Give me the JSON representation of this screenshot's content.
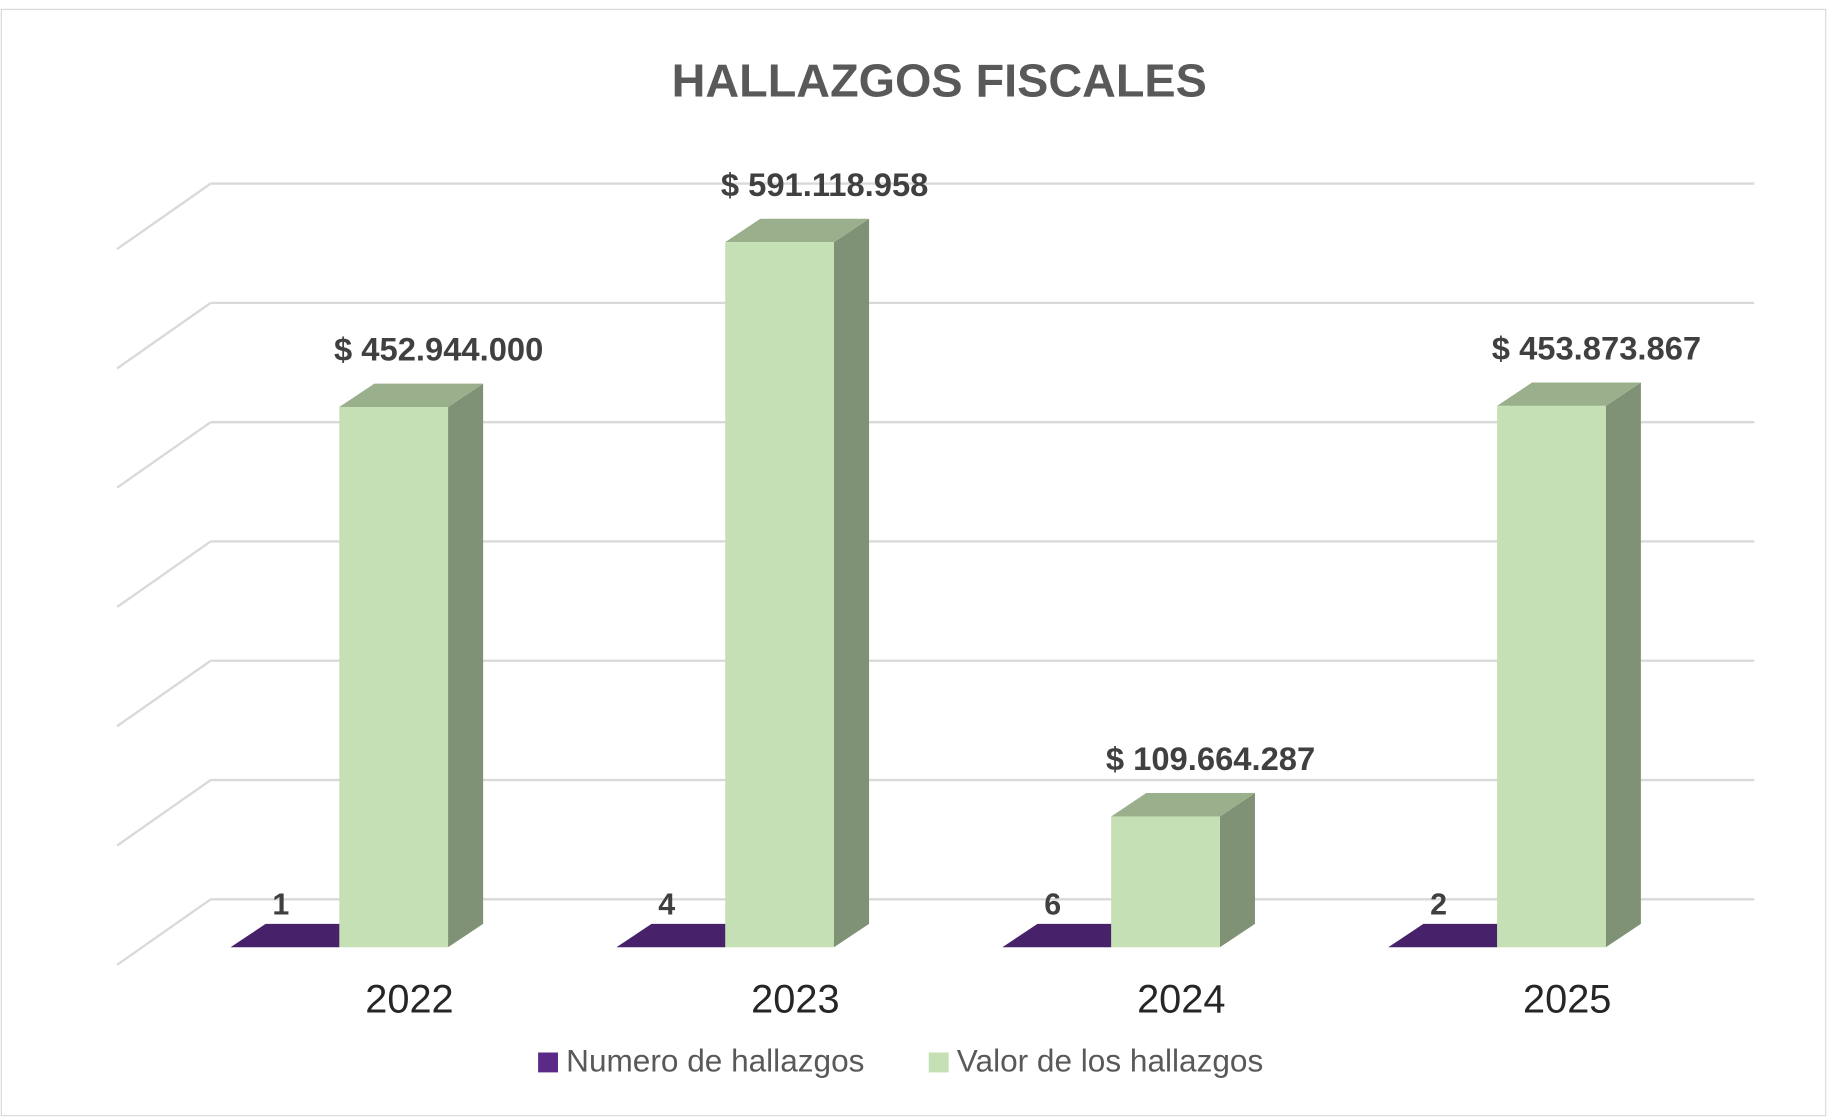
{
  "chart_data": {
    "type": "bar3d",
    "title": "HALLAZGOS FISCALES",
    "categories": [
      "2022",
      "2023",
      "2024",
      "2025"
    ],
    "series": [
      {
        "name": "Numero de hallazgos",
        "color": "#5b2a86",
        "values": [
          1,
          4,
          6,
          2
        ]
      },
      {
        "name": "Valor de los hallazgos",
        "color": "#c5e0b4",
        "values": [
          452944000,
          591118958,
          109664287,
          453873867
        ],
        "value_labels": [
          "$ 452.944.000",
          "$ 591.118.958",
          "$ 109.664.287",
          "$ 453.873.867"
        ]
      }
    ],
    "ylim": [
      0,
      600000000
    ],
    "yticks": [
      0,
      100000000,
      200000000,
      300000000,
      400000000,
      500000000,
      600000000
    ],
    "grid": true,
    "legend": "bottom"
  }
}
